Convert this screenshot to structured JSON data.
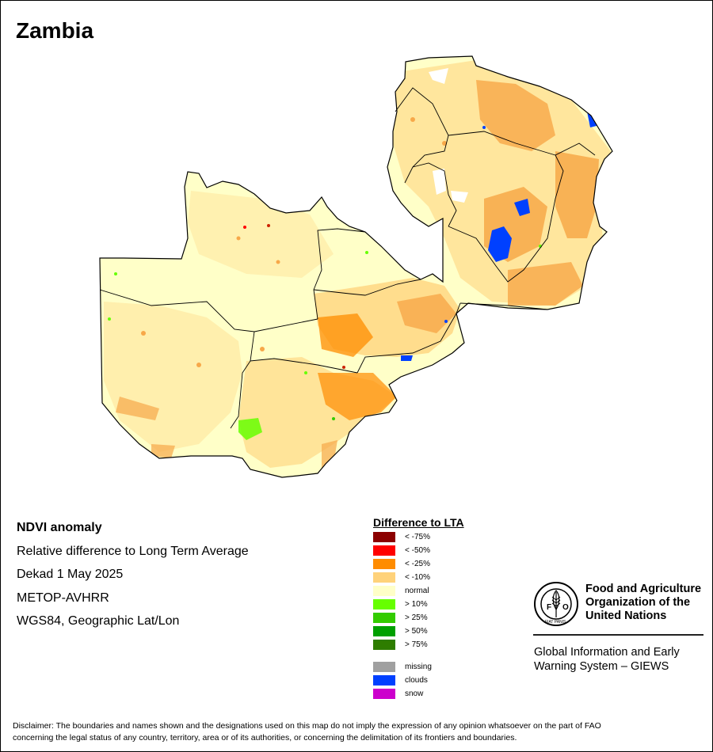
{
  "map_title": "Zambia",
  "info": {
    "product": "NDVI anomaly",
    "description": "Relative difference to Long Term Average",
    "period": "Dekad 1 May 2025",
    "sensor": "METOP-AVHRR",
    "projection": "WGS84, Geographic Lat/Lon"
  },
  "legend": {
    "title": "Difference to LTA",
    "classes": [
      {
        "label": "< -75%",
        "color": "#8b0000"
      },
      {
        "label": "< -50%",
        "color": "#ff0000"
      },
      {
        "label": "< -25%",
        "color": "#ff8c00"
      },
      {
        "label": "< -10%",
        "color": "#ffd27a"
      },
      {
        "label": "normal",
        "color": "#ffffc8"
      },
      {
        "label": "> 10%",
        "color": "#66ff00"
      },
      {
        "label": "> 25%",
        "color": "#33cc00"
      },
      {
        "label": "> 50%",
        "color": "#00a000"
      },
      {
        "label": "> 75%",
        "color": "#2e7d00"
      }
    ],
    "other": [
      {
        "label": "missing",
        "color": "#a0a0a0"
      },
      {
        "label": "clouds",
        "color": "#0040ff"
      },
      {
        "label": "snow",
        "color": "#cc00cc"
      }
    ]
  },
  "organization": {
    "logo_text": "FAO",
    "logo_motto": "FIAT PANIS",
    "name_lines": [
      "Food and Agriculture",
      "Organization of the",
      "United Nations"
    ],
    "program_lines": [
      "Global Information and Early",
      "Warning System – GIEWS"
    ]
  },
  "disclaimer_lines": [
    "Disclaimer: The boundaries and names shown and the designations used on this map do not imply the expression of any opinion whatsoever on the part of FAO",
    "concerning the legal status of any country, territory, area or of its authorities, or concerning the delimitation of its frontiers and boundaries."
  ],
  "colors": {
    "normal_fill": "#ffffc8",
    "mild_negative": "#ffd27a",
    "moderate_negative": "#f7a849",
    "strong_negative": "#ff8c00",
    "clouds": "#0040ff",
    "border": "#000000"
  }
}
